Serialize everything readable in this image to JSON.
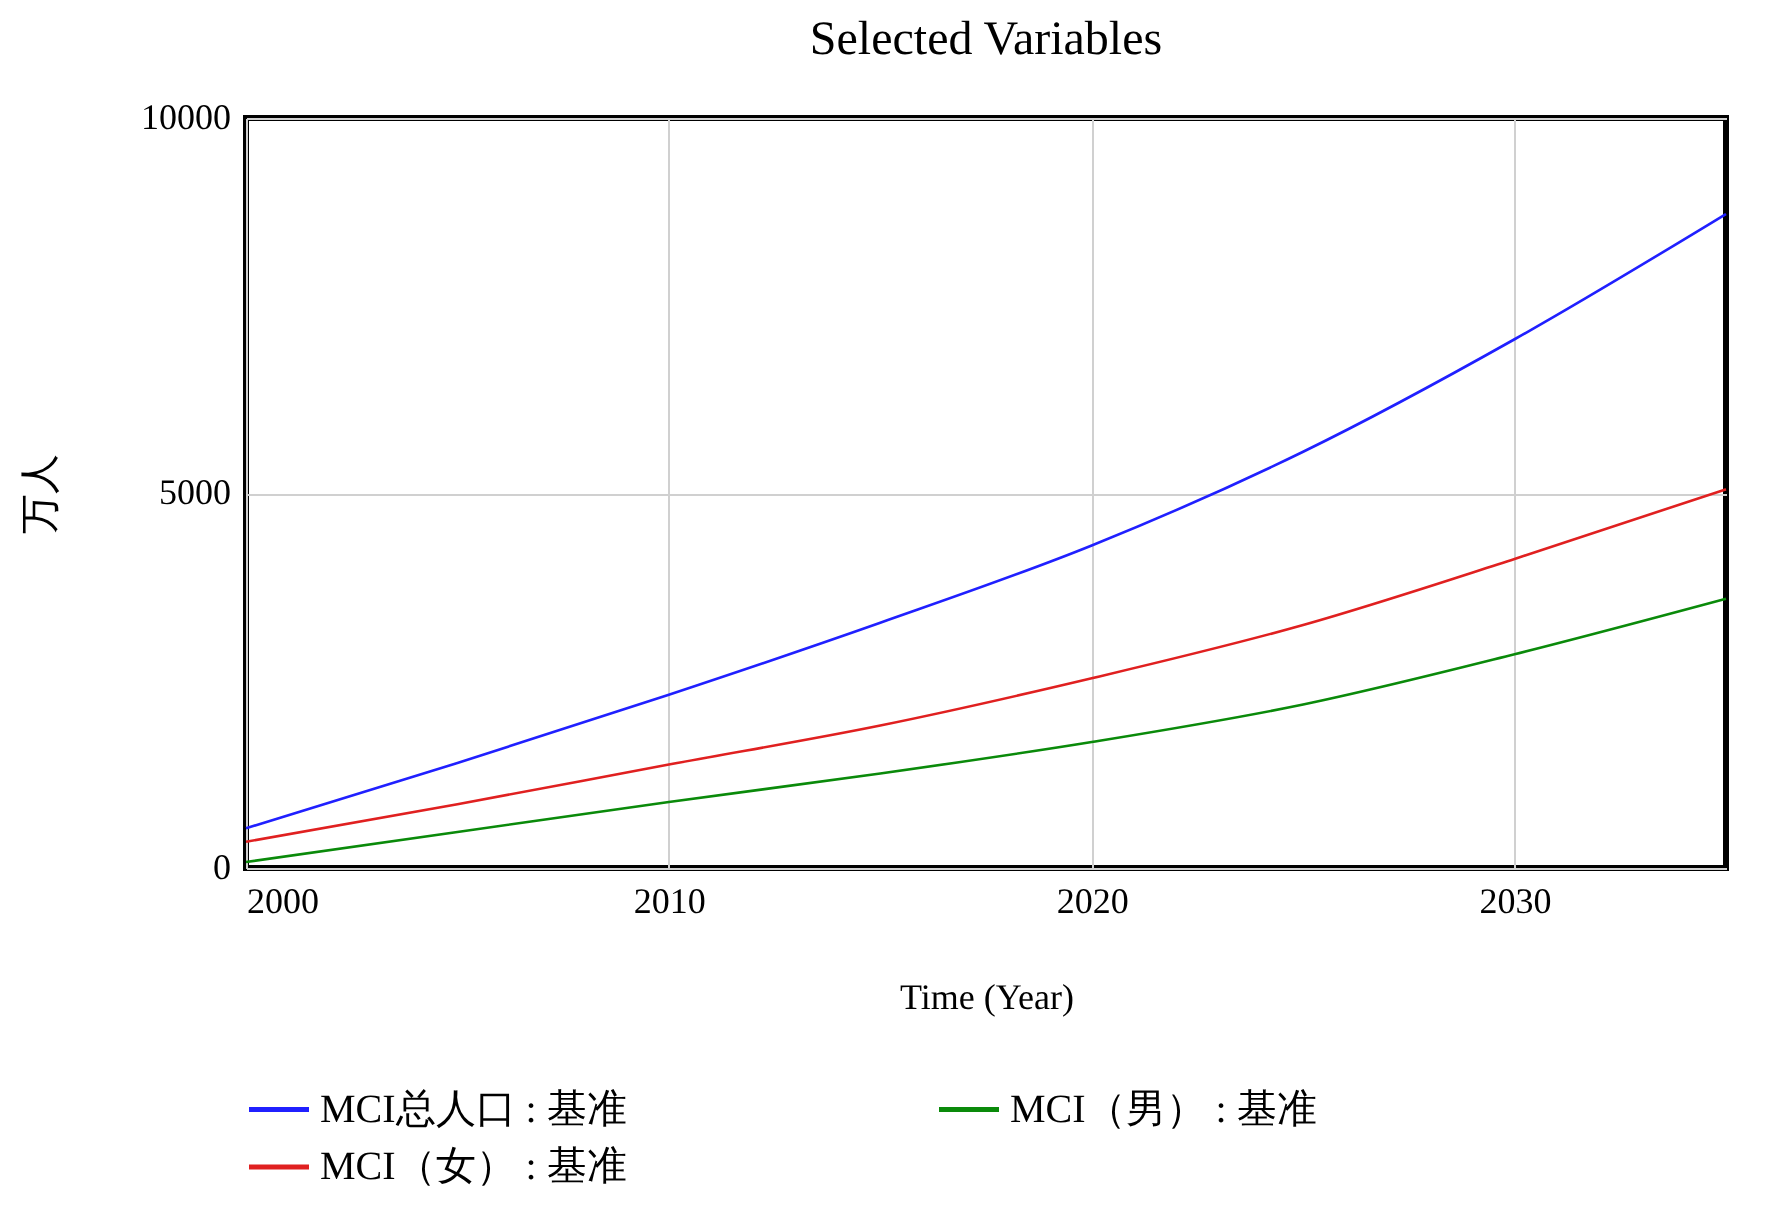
{
  "chart_data": {
    "type": "line",
    "title": "Selected Variables",
    "xlabel": "Time (Year)",
    "ylabel": "万人",
    "x": [
      2000,
      2005,
      2010,
      2015,
      2020,
      2025,
      2030,
      2035
    ],
    "series": [
      {
        "name": "MCI总人口 : 基准",
        "color": "#2020ff",
        "values": [
          530,
          1400,
          2310,
          3270,
          4300,
          5550,
          7050,
          8720
        ]
      },
      {
        "name": "MCI（男） : 基准",
        "color": "#0a8a0a",
        "values": [
          80,
          480,
          880,
          1260,
          1680,
          2180,
          2850,
          3590
        ]
      },
      {
        "name": "MCI（女） : 基准",
        "color": "#e02020",
        "values": [
          350,
          850,
          1380,
          1900,
          2530,
          3240,
          4120,
          5050
        ]
      }
    ],
    "xlim": [
      2000,
      2035
    ],
    "xticks": [
      2000,
      2010,
      2020,
      2030
    ],
    "ylim": [
      0,
      10000
    ],
    "yticks": [
      0,
      5000,
      10000
    ],
    "grid": true,
    "legend": "bottom",
    "line_style": "solid",
    "marker": "none"
  }
}
